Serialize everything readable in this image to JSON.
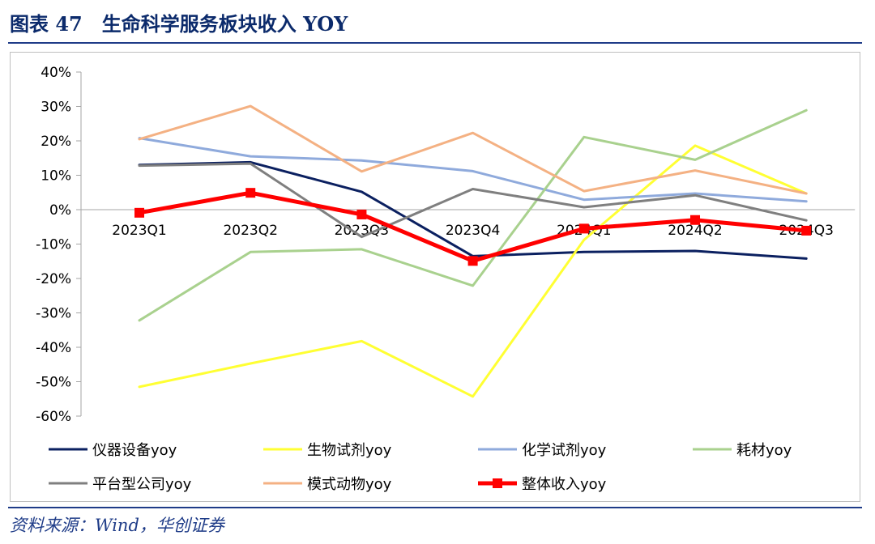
{
  "header": {
    "title": "图表 47　生命科学服务板块收入 YOY"
  },
  "footer": {
    "source": "资料来源：Wind，华创证券"
  },
  "chart_data": {
    "type": "line",
    "categories": [
      "2023Q1",
      "2023Q2",
      "2023Q3",
      "2023Q4",
      "2024Q1",
      "2024Q2",
      "2024Q3"
    ],
    "ylim": [
      -60,
      40
    ],
    "yticks": [
      40,
      30,
      20,
      10,
      0,
      -10,
      -20,
      -30,
      -40,
      -50,
      -60
    ],
    "ytick_labels": [
      "40%",
      "30%",
      "20%",
      "10%",
      "0%",
      "-10%",
      "-20%",
      "-30%",
      "-40%",
      "-50%",
      "-60%"
    ],
    "grid": false,
    "legend_position": "bottom",
    "series": [
      {
        "name": "仪器设备yoy",
        "color": "#0b2060",
        "width": 3,
        "values": [
          13,
          13.8,
          5.2,
          -13.5,
          -12.3,
          -12,
          -14.2
        ]
      },
      {
        "name": "生物试剂yoy",
        "color": "#ffff33",
        "width": 3,
        "values": [
          -51.5,
          -44.7,
          -38.2,
          -54.3,
          -8.8,
          18.6,
          4.7
        ]
      },
      {
        "name": "化学试剂yoy",
        "color": "#8faadc",
        "width": 3,
        "values": [
          20.8,
          15.5,
          14.3,
          11.2,
          2.9,
          4.7,
          2.4
        ]
      },
      {
        "name": "耗材yoy",
        "color": "#a9d18e",
        "width": 3,
        "values": [
          -32.2,
          -12.3,
          -11.5,
          -22.1,
          21.1,
          14.5,
          28.9
        ]
      },
      {
        "name": "平台型公司yoy",
        "color": "#7f7f7f",
        "width": 3,
        "values": [
          12.8,
          13.4,
          -7.9,
          6,
          0.7,
          4.2,
          -3.1
        ]
      },
      {
        "name": "模式动物yoy",
        "color": "#f4b183",
        "width": 3,
        "values": [
          20.5,
          30.1,
          11.1,
          22.3,
          5.4,
          11.4,
          4.7
        ]
      },
      {
        "name": "整体收入yoy",
        "color": "#ff0000",
        "width": 5,
        "marker": "square",
        "values": [
          -0.9,
          4.9,
          -1.4,
          -14.9,
          -5.5,
          -3,
          -6.1
        ]
      }
    ]
  }
}
